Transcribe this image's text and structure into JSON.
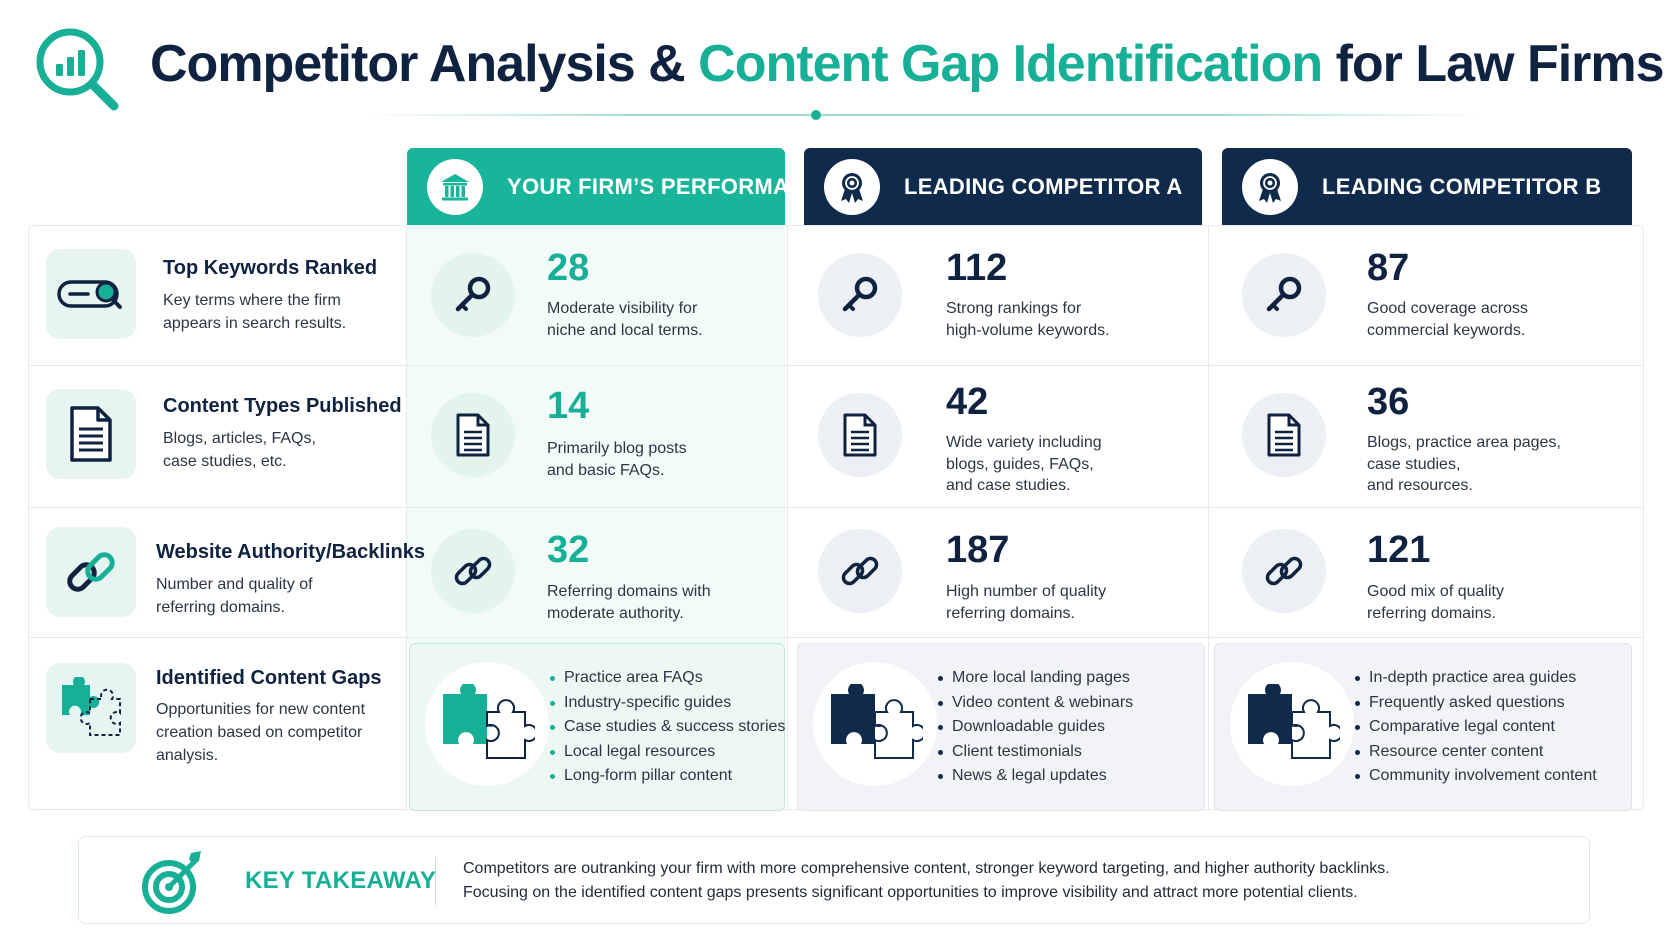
{
  "header": {
    "title_part1": "Competitor Analysis & ",
    "title_accent": "Content Gap Identification",
    "title_part2": " for Law Firms",
    "logo_icon": "magnifier-chart-icon"
  },
  "colors": {
    "accent": "#17b097",
    "navy": "#0f2a4a",
    "text_dark": "#0f2340"
  },
  "columns": [
    {
      "label": "YOUR FIRM’S PERFORMANCE",
      "icon": "bank-icon"
    },
    {
      "label": "LEADING COMPETITOR A",
      "icon": "award-badge-icon"
    },
    {
      "label": "LEADING COMPETITOR B",
      "icon": "award-badge-icon"
    }
  ],
  "rows": [
    {
      "title": "Top Keywords Ranked",
      "desc": "Key terms where the firm appears in search results.",
      "icon": "search-bar-icon",
      "cell_icon": "key-icon",
      "cells": [
        {
          "value": "28",
          "line1": "Moderate visibility for",
          "line2": "niche and local terms.",
          "line3": ""
        },
        {
          "value": "112",
          "line1": "Strong rankings for",
          "line2": "high-volume keywords.",
          "line3": ""
        },
        {
          "value": "87",
          "line1": "Good coverage across",
          "line2": "commercial keywords.",
          "line3": ""
        }
      ]
    },
    {
      "title": "Content Types Published",
      "desc": "Blogs, articles, FAQs, case studies, etc.",
      "icon": "document-icon",
      "cell_icon": "document-icon",
      "cells": [
        {
          "value": "14",
          "line1": "Primarily blog posts",
          "line2": "and basic FAQs.",
          "line3": ""
        },
        {
          "value": "42",
          "line1": "Wide variety including",
          "line2": "blogs, guides, FAQs,",
          "line3": "and case studies."
        },
        {
          "value": "36",
          "line1": "Blogs, practice area pages,",
          "line2": "case studies,",
          "line3": "and resources."
        }
      ]
    },
    {
      "title": "Website Authority/Backlinks",
      "desc": "Number and quality of referring domains.",
      "icon": "link-icon",
      "cell_icon": "link-icon",
      "cells": [
        {
          "value": "32",
          "line1": "Referring domains with",
          "line2": "moderate authority.",
          "line3": ""
        },
        {
          "value": "187",
          "line1": "High number of quality",
          "line2": "referring domains.",
          "line3": ""
        },
        {
          "value": "121",
          "line1": "Good mix of quality",
          "line2": "referring domains.",
          "line3": ""
        }
      ]
    },
    {
      "title": "Identified Content Gaps",
      "desc": "Opportunities for new content creation based on competitor analysis.",
      "icon": "puzzle-icon"
    }
  ],
  "gaps": [
    {
      "items": [
        "Practice area FAQs",
        "Industry-specific guides",
        "Case studies & success stories",
        "Local legal resources",
        "Long-form pillar content"
      ]
    },
    {
      "items": [
        "More local landing pages",
        "Video content & webinars",
        "Downloadable guides",
        "Client testimonials",
        "News & legal updates"
      ]
    },
    {
      "items": [
        "In-depth practice area guides",
        "Frequently asked questions",
        "Comparative legal content",
        "Resource center content",
        "Community involvement content"
      ]
    }
  ],
  "takeaway": {
    "label": "KEY TAKEAWAY",
    "icon": "target-icon",
    "line1": "Competitors are outranking your firm with more comprehensive content, stronger keyword targeting, and higher authority backlinks.",
    "line2": "Focusing on the identified content gaps presents significant opportunities to improve visibility and attract more potential clients."
  }
}
